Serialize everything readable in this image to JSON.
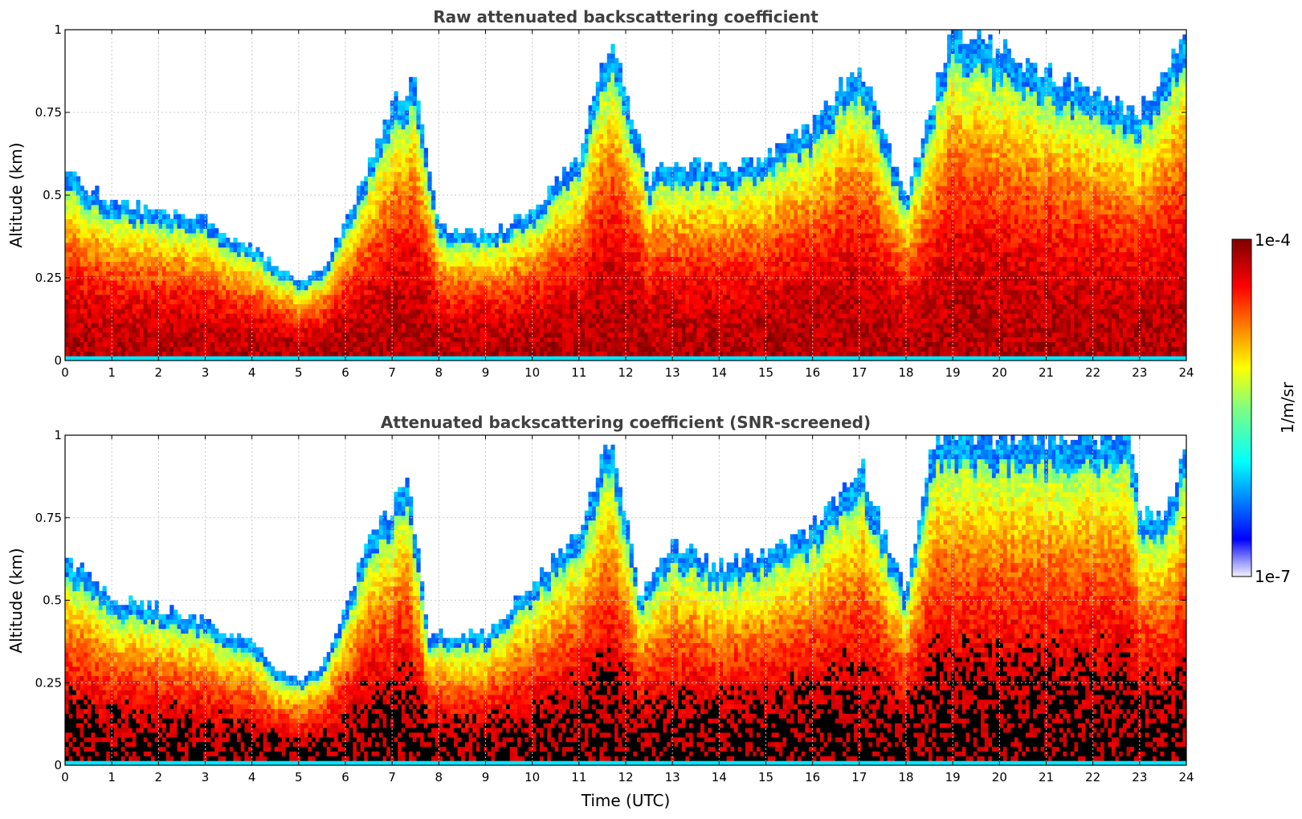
{
  "chart_data": [
    {
      "type": "heatmap",
      "title": "Raw attenuated backscattering coefficient",
      "xlabel": "",
      "ylabel": "Altitude (km)",
      "xlim": [
        0,
        24
      ],
      "ylim": [
        0,
        1
      ],
      "x_ticks": [
        "0",
        "1",
        "2",
        "3",
        "4",
        "5",
        "6",
        "7",
        "8",
        "9",
        "10",
        "11",
        "12",
        "13",
        "14",
        "15",
        "16",
        "17",
        "18",
        "19",
        "20",
        "21",
        "22",
        "23",
        "24"
      ],
      "y_ticks": [
        "0",
        "0.25",
        "0.5",
        "0.75",
        "1"
      ],
      "grid": true,
      "layer_top_km": [
        {
          "t": 0.0,
          "h": 0.58
        },
        {
          "t": 0.5,
          "h": 0.52
        },
        {
          "t": 1.0,
          "h": 0.48
        },
        {
          "t": 2.0,
          "h": 0.45
        },
        {
          "t": 3.0,
          "h": 0.43
        },
        {
          "t": 3.5,
          "h": 0.38
        },
        {
          "t": 4.0,
          "h": 0.35
        },
        {
          "t": 4.5,
          "h": 0.28
        },
        {
          "t": 5.0,
          "h": 0.24
        },
        {
          "t": 5.5,
          "h": 0.27
        },
        {
          "t": 6.0,
          "h": 0.42
        },
        {
          "t": 6.5,
          "h": 0.6
        },
        {
          "t": 7.0,
          "h": 0.78
        },
        {
          "t": 7.5,
          "h": 0.85
        },
        {
          "t": 8.0,
          "h": 0.4
        },
        {
          "t": 9.0,
          "h": 0.38
        },
        {
          "t": 10.0,
          "h": 0.45
        },
        {
          "t": 11.0,
          "h": 0.62
        },
        {
          "t": 11.7,
          "h": 1.0
        },
        {
          "t": 12.5,
          "h": 0.55
        },
        {
          "t": 13.0,
          "h": 0.6
        },
        {
          "t": 14.0,
          "h": 0.58
        },
        {
          "t": 15.0,
          "h": 0.62
        },
        {
          "t": 16.0,
          "h": 0.72
        },
        {
          "t": 17.0,
          "h": 0.9
        },
        {
          "t": 18.0,
          "h": 0.5
        },
        {
          "t": 19.0,
          "h": 1.0
        },
        {
          "t": 23.0,
          "h": 0.75
        },
        {
          "t": 24.0,
          "h": 1.0
        }
      ]
    },
    {
      "type": "heatmap",
      "title": "Attenuated backscattering coefficient (SNR-screened)",
      "xlabel": "Time (UTC)",
      "ylabel": "Altitude (km)",
      "xlim": [
        0,
        24
      ],
      "ylim": [
        0,
        1
      ],
      "x_ticks": [
        "0",
        "1",
        "2",
        "3",
        "4",
        "5",
        "6",
        "7",
        "8",
        "9",
        "10",
        "11",
        "12",
        "13",
        "14",
        "15",
        "16",
        "17",
        "18",
        "19",
        "20",
        "21",
        "22",
        "23",
        "24"
      ],
      "y_ticks": [
        "0",
        "0.25",
        "0.5",
        "0.75",
        "1"
      ],
      "grid": true,
      "layer_top_km": [
        {
          "t": 0.0,
          "h": 0.62
        },
        {
          "t": 0.5,
          "h": 0.58
        },
        {
          "t": 1.0,
          "h": 0.5
        },
        {
          "t": 2.0,
          "h": 0.48
        },
        {
          "t": 3.0,
          "h": 0.44
        },
        {
          "t": 3.5,
          "h": 0.4
        },
        {
          "t": 4.0,
          "h": 0.38
        },
        {
          "t": 4.5,
          "h": 0.28
        },
        {
          "t": 5.0,
          "h": 0.26
        },
        {
          "t": 5.5,
          "h": 0.3
        },
        {
          "t": 6.0,
          "h": 0.48
        },
        {
          "t": 6.5,
          "h": 0.7
        },
        {
          "t": 7.0,
          "h": 0.78
        },
        {
          "t": 7.3,
          "h": 0.88
        },
        {
          "t": 7.8,
          "h": 0.4
        },
        {
          "t": 9.0,
          "h": 0.4
        },
        {
          "t": 10.0,
          "h": 0.55
        },
        {
          "t": 11.0,
          "h": 0.72
        },
        {
          "t": 11.7,
          "h": 1.0
        },
        {
          "t": 12.3,
          "h": 0.52
        },
        {
          "t": 13.0,
          "h": 0.68
        },
        {
          "t": 14.0,
          "h": 0.6
        },
        {
          "t": 15.0,
          "h": 0.65
        },
        {
          "t": 16.0,
          "h": 0.72
        },
        {
          "t": 17.0,
          "h": 0.92
        },
        {
          "t": 18.0,
          "h": 0.52
        },
        {
          "t": 18.6,
          "h": 1.0
        },
        {
          "t": 22.8,
          "h": 1.0
        },
        {
          "t": 23.0,
          "h": 0.75
        },
        {
          "t": 23.6,
          "h": 0.78
        },
        {
          "t": 24.0,
          "h": 1.0
        }
      ]
    }
  ],
  "colorbar": {
    "label": "1/m/sr",
    "max_label": "1e-4",
    "min_label": "1e-7",
    "scale": "log",
    "colormap": "jet",
    "low_color": "#e8e8ff",
    "high_color": "#7f0000",
    "screened_color": "#000000"
  }
}
